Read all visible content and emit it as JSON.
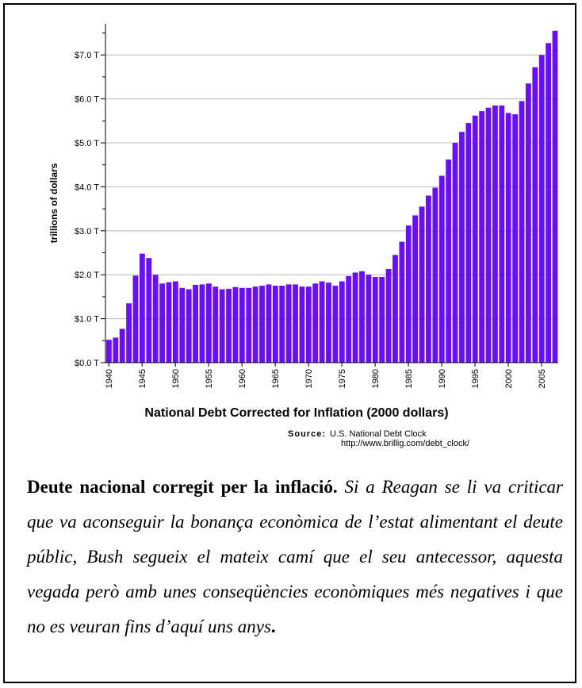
{
  "chart_data": {
    "type": "bar",
    "title": "National Debt Corrected for Inflation (2000 dollars)",
    "ylabel": "trillions of dollars",
    "xlabel": "",
    "ylim": [
      0,
      7.6
    ],
    "ytick_values": [
      0,
      1,
      2,
      3,
      4,
      5,
      6,
      7
    ],
    "ytick_labels": [
      "$0.0 T",
      "$1.0 T",
      "$2.0 T",
      "$3.0 T",
      "$4.0 T",
      "$5.0 T",
      "$6.0 T",
      "$7.0 T"
    ],
    "xtick_labels": [
      "1940",
      "1945",
      "1950",
      "1955",
      "1960",
      "1965",
      "1970",
      "1975",
      "1980",
      "1985",
      "1990",
      "1995",
      "2000",
      "2005"
    ],
    "grid": true,
    "bar_color": "#6a0dff",
    "categories": [
      1940,
      1941,
      1942,
      1943,
      1944,
      1945,
      1946,
      1947,
      1948,
      1949,
      1950,
      1951,
      1952,
      1953,
      1954,
      1955,
      1956,
      1957,
      1958,
      1959,
      1960,
      1961,
      1962,
      1963,
      1964,
      1965,
      1966,
      1967,
      1968,
      1969,
      1970,
      1971,
      1972,
      1973,
      1974,
      1975,
      1976,
      1977,
      1978,
      1979,
      1980,
      1981,
      1982,
      1983,
      1984,
      1985,
      1986,
      1987,
      1988,
      1989,
      1990,
      1991,
      1992,
      1993,
      1994,
      1995,
      1996,
      1997,
      1998,
      1999,
      2000,
      2001,
      2002,
      2003,
      2004,
      2005,
      2006,
      2007
    ],
    "values": [
      0.52,
      0.57,
      0.77,
      1.35,
      1.98,
      2.48,
      2.38,
      2.0,
      1.8,
      1.83,
      1.85,
      1.7,
      1.67,
      1.77,
      1.78,
      1.8,
      1.73,
      1.67,
      1.68,
      1.72,
      1.7,
      1.7,
      1.73,
      1.75,
      1.78,
      1.75,
      1.75,
      1.78,
      1.78,
      1.73,
      1.73,
      1.8,
      1.85,
      1.82,
      1.75,
      1.85,
      1.97,
      2.05,
      2.08,
      2.0,
      1.95,
      1.95,
      2.13,
      2.45,
      2.75,
      3.12,
      3.35,
      3.55,
      3.8,
      3.98,
      4.25,
      4.62,
      5.0,
      5.25,
      5.45,
      5.62,
      5.72,
      5.8,
      5.85,
      5.85,
      5.68,
      5.65,
      5.95,
      6.35,
      6.72,
      7.0,
      7.27,
      7.55
    ]
  },
  "source": {
    "label": "Source:",
    "line1": "U.S. National Debt Clock",
    "line2": "http://www.brillig.com/debt_clock/"
  },
  "caption": {
    "bold": "Deute nacional corregit per la inflació.",
    "italic": "Si a Reagan se li va criticar que va aconseguir la bonança econòmica de l’estat alimentant el deute públic, Bush segueix el mateix camí que el seu antecessor, aquesta vegada però amb unes conseqüències econòmiques més negatives i que no es veuran fins d’aquí uns anys",
    "end": "."
  }
}
